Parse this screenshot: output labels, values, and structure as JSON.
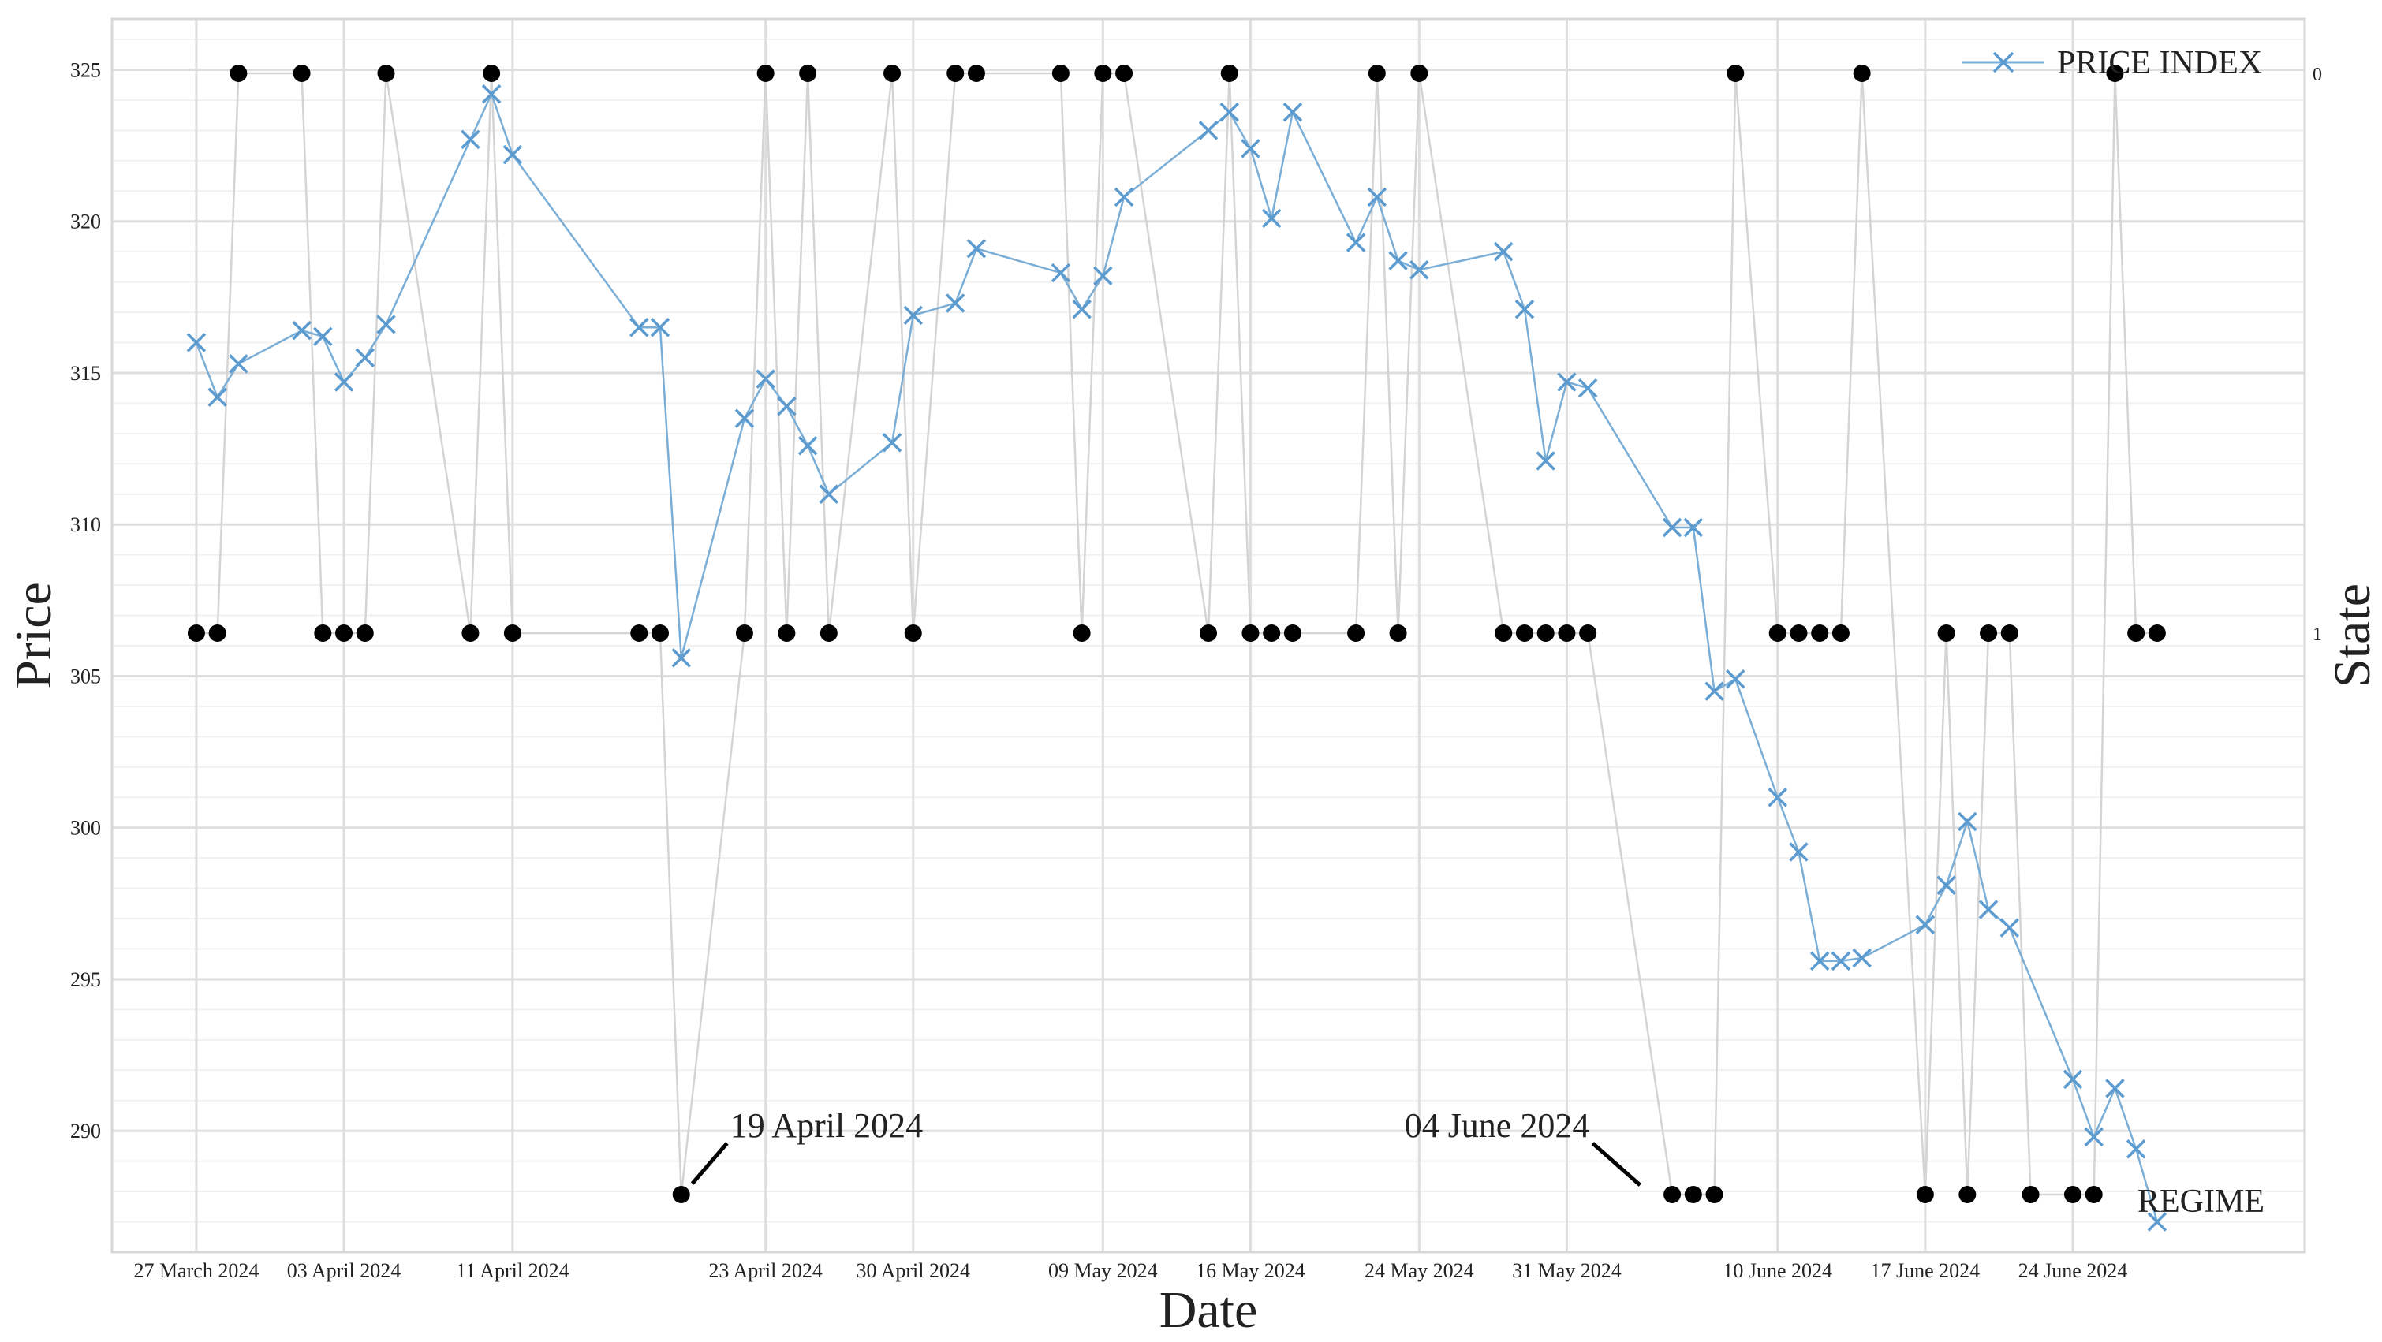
{
  "chart_data": {
    "type": "line",
    "xlabel": "Date",
    "ylabel": "Price",
    "y2label": "State",
    "ylim": [
      286,
      326
    ],
    "y_ticks": [
      290,
      295,
      300,
      305,
      310,
      315,
      320,
      325
    ],
    "y2_ticks": [
      {
        "value": 0,
        "label": "0"
      },
      {
        "value": 1,
        "label": "1"
      }
    ],
    "x_range": [
      "2024-03-23",
      "2024-07-05"
    ],
    "x_ticks": [
      {
        "date": "2024-03-27",
        "label": "27 March 2024"
      },
      {
        "date": "2024-04-03",
        "label": "03 April 2024"
      },
      {
        "date": "2024-04-11",
        "label": "11 April 2024"
      },
      {
        "date": "2024-04-23",
        "label": "23 April 2024"
      },
      {
        "date": "2024-04-30",
        "label": "30 April 2024"
      },
      {
        "date": "2024-05-09",
        "label": "09 May 2024"
      },
      {
        "date": "2024-05-16",
        "label": "16 May 2024"
      },
      {
        "date": "2024-05-24",
        "label": "24 May 2024"
      },
      {
        "date": "2024-05-31",
        "label": "31 May 2024"
      },
      {
        "date": "2024-06-10",
        "label": "10 June 2024"
      },
      {
        "date": "2024-06-17",
        "label": "17 June 2024"
      },
      {
        "date": "2024-06-24",
        "label": "24 June 2024"
      }
    ],
    "grid": true,
    "legend": "top-right",
    "annotations": [
      {
        "text": "19 April 2024",
        "date": "2024-04-19",
        "state": 2
      },
      {
        "text": "04 June 2024",
        "date": "2024-06-04",
        "state": 2
      }
    ],
    "series": [
      {
        "name": "PRICE INDEX",
        "axis": "price",
        "color": "#7aaed6",
        "marker": "x",
        "points": [
          [
            "2024-03-27",
            316.0
          ],
          [
            "2024-03-28",
            314.2
          ],
          [
            "2024-03-29",
            315.3
          ],
          [
            "2024-04-01",
            316.4
          ],
          [
            "2024-04-02",
            316.2
          ],
          [
            "2024-04-03",
            314.7
          ],
          [
            "2024-04-04",
            315.5
          ],
          [
            "2024-04-05",
            316.6
          ],
          [
            "2024-04-09",
            322.7
          ],
          [
            "2024-04-10",
            324.2
          ],
          [
            "2024-04-11",
            322.2
          ],
          [
            "2024-04-17",
            316.5
          ],
          [
            "2024-04-18",
            316.5
          ],
          [
            "2024-04-19",
            305.6
          ],
          [
            "2024-04-22",
            313.5
          ],
          [
            "2024-04-23",
            314.8
          ],
          [
            "2024-04-24",
            313.9
          ],
          [
            "2024-04-25",
            312.6
          ],
          [
            "2024-04-26",
            311.0
          ],
          [
            "2024-04-29",
            312.7
          ],
          [
            "2024-04-30",
            316.9
          ],
          [
            "2024-05-02",
            317.3
          ],
          [
            "2024-05-03",
            319.1
          ],
          [
            "2024-05-07",
            318.3
          ],
          [
            "2024-05-08",
            317.1
          ],
          [
            "2024-05-09",
            318.2
          ],
          [
            "2024-05-10",
            320.8
          ],
          [
            "2024-05-14",
            323.0
          ],
          [
            "2024-05-15",
            323.6
          ],
          [
            "2024-05-16",
            322.4
          ],
          [
            "2024-05-17",
            320.1
          ],
          [
            "2024-05-18",
            323.6
          ],
          [
            "2024-05-21",
            319.3
          ],
          [
            "2024-05-22",
            320.8
          ],
          [
            "2024-05-23",
            318.7
          ],
          [
            "2024-05-24",
            318.4
          ],
          [
            "2024-05-28",
            319.0
          ],
          [
            "2024-05-29",
            317.1
          ],
          [
            "2024-05-30",
            312.1
          ],
          [
            "2024-05-31",
            314.7
          ],
          [
            "2024-06-01",
            314.5
          ],
          [
            "2024-06-05",
            309.9
          ],
          [
            "2024-06-06",
            309.9
          ],
          [
            "2024-06-07",
            304.5
          ],
          [
            "2024-06-08",
            304.9
          ],
          [
            "2024-06-10",
            301.0
          ],
          [
            "2024-06-11",
            299.2
          ],
          [
            "2024-06-12",
            295.6
          ],
          [
            "2024-06-13",
            295.6
          ],
          [
            "2024-06-14",
            295.7
          ],
          [
            "2024-06-17",
            296.8
          ],
          [
            "2024-06-18",
            298.1
          ],
          [
            "2024-06-19",
            300.2
          ],
          [
            "2024-06-20",
            297.3
          ],
          [
            "2024-06-21",
            296.7
          ],
          [
            "2024-06-24",
            291.7
          ],
          [
            "2024-06-25",
            289.8
          ],
          [
            "2024-06-26",
            291.4
          ],
          [
            "2024-06-27",
            289.4
          ],
          [
            "2024-06-28",
            287.0
          ]
        ]
      },
      {
        "name": "REGIME",
        "axis": "state",
        "color": "#000000",
        "line_color": "#d4d4d4",
        "marker": "dot",
        "points": [
          [
            "2024-03-27",
            1
          ],
          [
            "2024-03-28",
            1
          ],
          [
            "2024-03-29",
            0
          ],
          [
            "2024-04-01",
            0
          ],
          [
            "2024-04-02",
            1
          ],
          [
            "2024-04-03",
            1
          ],
          [
            "2024-04-04",
            1
          ],
          [
            "2024-04-05",
            0
          ],
          [
            "2024-04-09",
            1
          ],
          [
            "2024-04-10",
            0
          ],
          [
            "2024-04-11",
            1
          ],
          [
            "2024-04-17",
            1
          ],
          [
            "2024-04-18",
            1
          ],
          [
            "2024-04-19",
            2
          ],
          [
            "2024-04-22",
            1
          ],
          [
            "2024-04-23",
            0
          ],
          [
            "2024-04-24",
            1
          ],
          [
            "2024-04-25",
            0
          ],
          [
            "2024-04-26",
            1
          ],
          [
            "2024-04-29",
            0
          ],
          [
            "2024-04-30",
            1
          ],
          [
            "2024-05-02",
            0
          ],
          [
            "2024-05-03",
            0
          ],
          [
            "2024-05-07",
            0
          ],
          [
            "2024-05-08",
            1
          ],
          [
            "2024-05-09",
            0
          ],
          [
            "2024-05-10",
            0
          ],
          [
            "2024-05-14",
            1
          ],
          [
            "2024-05-15",
            0
          ],
          [
            "2024-05-16",
            1
          ],
          [
            "2024-05-17",
            1
          ],
          [
            "2024-05-18",
            1
          ],
          [
            "2024-05-21",
            1
          ],
          [
            "2024-05-22",
            0
          ],
          [
            "2024-05-23",
            1
          ],
          [
            "2024-05-24",
            0
          ],
          [
            "2024-05-28",
            1
          ],
          [
            "2024-05-29",
            1
          ],
          [
            "2024-05-30",
            1
          ],
          [
            "2024-05-31",
            1
          ],
          [
            "2024-06-01",
            1
          ],
          [
            "2024-06-05",
            2
          ],
          [
            "2024-06-06",
            2
          ],
          [
            "2024-06-07",
            2
          ],
          [
            "2024-06-08",
            0
          ],
          [
            "2024-06-10",
            1
          ],
          [
            "2024-06-11",
            1
          ],
          [
            "2024-06-12",
            1
          ],
          [
            "2024-06-13",
            1
          ],
          [
            "2024-06-14",
            0
          ],
          [
            "2024-06-17",
            2
          ],
          [
            "2024-06-18",
            1
          ],
          [
            "2024-06-19",
            2
          ],
          [
            "2024-06-20",
            1
          ],
          [
            "2024-06-21",
            1
          ],
          [
            "2024-06-22",
            2
          ],
          [
            "2024-06-24",
            2
          ],
          [
            "2024-06-25",
            2
          ],
          [
            "2024-06-26",
            0
          ],
          [
            "2024-06-27",
            1
          ],
          [
            "2024-06-28",
            1
          ]
        ]
      }
    ]
  }
}
